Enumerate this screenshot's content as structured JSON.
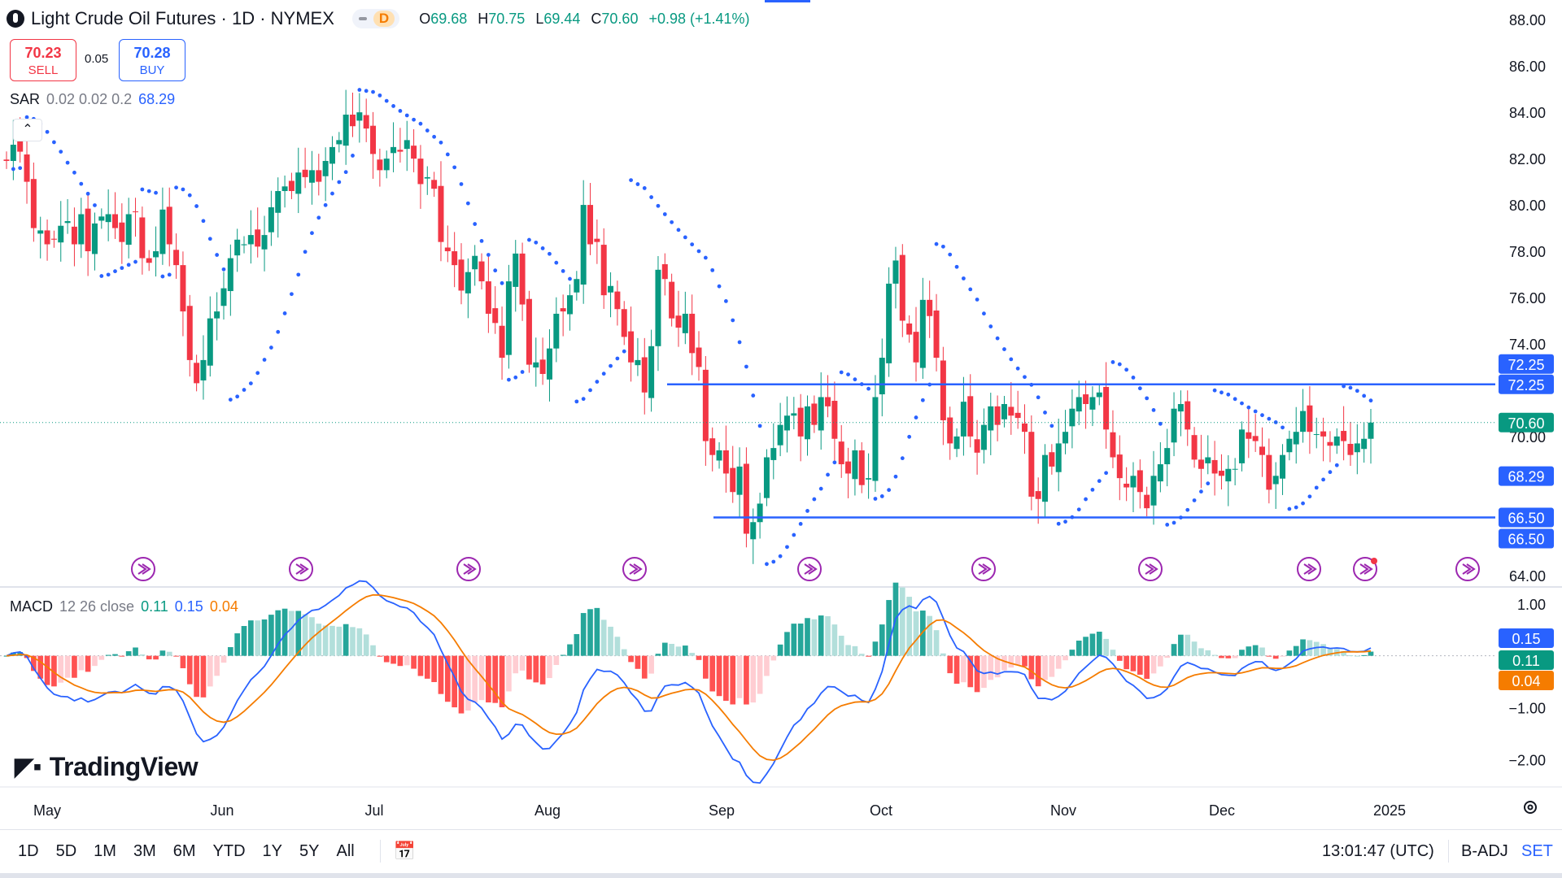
{
  "header": {
    "title": "Light Crude Oil Futures · 1D · NYMEX",
    "badge": "D",
    "ohlc": {
      "o_label": "O",
      "o": "69.68",
      "h_label": "H",
      "h": "70.75",
      "l_label": "L",
      "l": "69.44",
      "c_label": "C",
      "c": "70.60",
      "change": "+0.98 (+1.41%)"
    }
  },
  "trade": {
    "sell_price": "70.23",
    "sell_label": "SELL",
    "spread": "0.05",
    "buy_price": "70.28",
    "buy_label": "BUY"
  },
  "indicators": {
    "sar": {
      "name": "SAR",
      "params": "0.02 0.02 0.2",
      "value": "68.29"
    },
    "macd": {
      "name": "MACD",
      "params": "12 26 close",
      "v1": "0.11",
      "v2": "0.15",
      "v3": "0.04"
    }
  },
  "brand": "TradingView",
  "bottom": {
    "ranges": [
      "1D",
      "5D",
      "1M",
      "3M",
      "6M",
      "YTD",
      "1Y",
      "5Y",
      "All"
    ],
    "clock": "13:01:47 (UTC)",
    "adj": "B-ADJ",
    "set": "SET"
  },
  "colors": {
    "up": "#089981",
    "down": "#f23645",
    "sar": "#2962ff",
    "level": "#2962ff",
    "macd": "#2962ff",
    "signal": "#f57c00"
  },
  "chart_data": {
    "type": "candlestick",
    "title": "Light Crude Oil Futures · 1D · NYMEX",
    "price_axis": {
      "ticks": [
        "88.00",
        "86.00",
        "84.00",
        "82.00",
        "80.00",
        "78.00",
        "76.00",
        "74.00",
        "70.00",
        "64.00"
      ],
      "ylim": [
        63.5,
        88.5
      ]
    },
    "time_axis": {
      "ticks": [
        "May",
        "Jun",
        "Jul",
        "Aug",
        "Sep",
        "Oct",
        "Nov",
        "Dec",
        "2025"
      ]
    },
    "levels": [
      {
        "value": 72.25,
        "label": "72.25"
      },
      {
        "value": 66.5,
        "label": "66.50"
      }
    ],
    "last_price": {
      "value": 70.6,
      "label": "70.60"
    },
    "sar_value": {
      "value": 68.29,
      "label": "68.29"
    },
    "close": [
      81.9,
      82.6,
      82.3,
      81.0,
      79.0,
      78.9,
      78.3,
      78.5,
      79.1,
      79.3,
      78.3,
      79.6,
      78.0,
      79.2,
      79.5,
      79.6,
      79.0,
      78.4,
      79.6,
      79.7,
      77.7,
      77.5,
      78.0,
      79.8,
      78.3,
      77.4,
      75.4,
      73.3,
      72.3,
      73.3,
      75.1,
      75.4,
      76.4,
      77.7,
      78.5,
      78.3,
      78.7,
      78.2,
      78.7,
      79.9,
      80.6,
      80.8,
      80.6,
      81.4,
      81.2,
      81.5,
      81.0,
      81.9,
      82.5,
      82.8,
      83.9,
      83.4,
      84.0,
      83.3,
      82.2,
      81.5,
      82.0,
      82.5,
      82.3,
      82.8,
      82.0,
      80.9,
      81.2,
      80.7,
      78.4,
      78.0,
      77.4,
      76.3,
      77.1,
      77.8,
      76.7,
      75.3,
      74.9,
      73.4,
      76.7,
      77.9,
      75.7,
      73.1,
      73.2,
      72.7,
      73.8,
      75.3,
      75.4,
      76.1,
      76.8,
      80.0,
      78.3,
      78.4,
      76.1,
      76.5,
      75.5,
      74.3,
      73.2,
      73.3,
      71.9,
      73.9,
      77.2,
      76.8,
      75.1,
      74.7,
      75.3,
      73.6,
      73.0,
      69.8,
      69.2,
      69.4,
      68.4,
      67.6,
      68.7,
      65.8,
      66.3,
      67.1,
      69.1,
      69.5,
      70.5,
      70.9,
      71.0,
      70.0,
      71.3,
      70.5,
      71.7,
      71.3,
      69.9,
      68.8,
      68.4,
      69.4,
      67.9,
      68.2,
      71.7,
      73.4,
      76.6,
      77.6,
      75.0,
      74.4,
      73.2,
      75.9,
      75.2,
      73.4,
      70.7,
      69.7,
      70.0,
      71.5,
      70.0,
      69.3,
      70.5,
      71.3,
      70.5,
      71.4,
      70.9,
      70.8,
      70.2,
      67.4,
      67.3,
      69.2,
      68.7,
      69.7,
      70.2,
      71.2,
      71.7,
      71.4,
      71.7,
      71.9,
      70.3,
      69.1,
      68.2,
      67.8,
      68.3,
      67.6,
      66.9,
      68.3,
      68.8,
      69.5,
      71.2,
      71.4,
      70.3,
      69.0,
      68.6,
      69.1,
      68.4,
      68.3,
      68.6,
      68.6,
      70.3,
      69.9,
      69.8,
      69.2,
      67.7,
      68.3,
      69.2,
      69.9,
      70.2,
      71.1,
      70.2,
      70.1,
      70.0,
      69.6,
      70.0,
      69.8,
      69.2,
      69.7,
      69.9,
      70.6
    ],
    "macd": {
      "v1": 0.11,
      "v2": 0.15,
      "v3": 0.04,
      "ylim": [
        -2.4,
        1.2
      ],
      "ticks": [
        "1.00",
        "−1.00",
        "−2.00"
      ]
    }
  }
}
